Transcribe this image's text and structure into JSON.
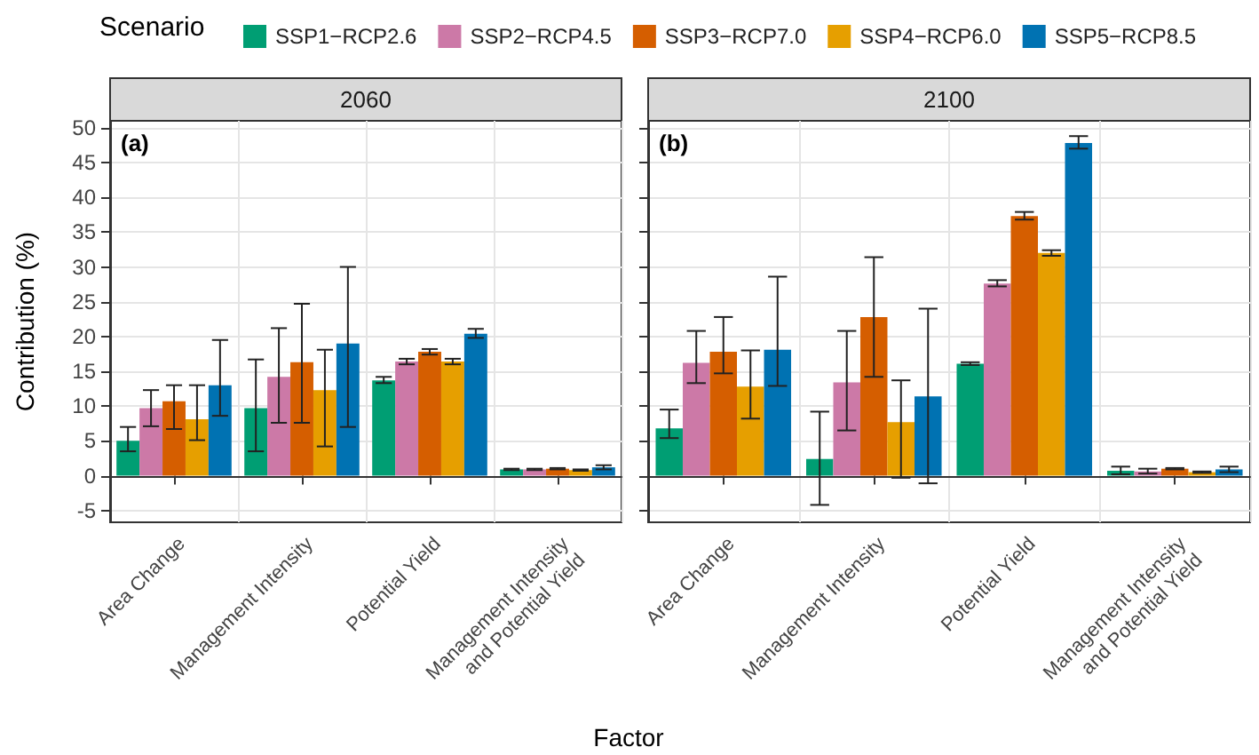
{
  "chart_data": [
    {
      "type": "bar",
      "title": "2060",
      "annotations": [
        "(a)"
      ],
      "xlabel": "Factor",
      "ylabel": "Contribution (%)",
      "legend_title": "Scenario",
      "legend": "top",
      "grid": true,
      "ylim": [
        -6.7,
        51
      ],
      "yticks": [
        -5,
        0,
        5,
        10,
        15,
        20,
        25,
        30,
        35,
        40,
        45,
        50
      ],
      "categories": [
        "Area Change",
        "Management Intensity",
        "Potential Yield",
        "Management Intensity\nand Potential Yield"
      ],
      "series": [
        {
          "name": "SSP1−RCP2.6",
          "color": "#009e73",
          "values": [
            5.0,
            9.7,
            13.7,
            0.9
          ],
          "errors": [
            [
              3.5,
              7.0
            ],
            [
              3.5,
              16.7
            ],
            [
              13.3,
              14.2
            ],
            [
              0.8,
              1.0
            ]
          ]
        },
        {
          "name": "SSP2−RCP4.5",
          "color": "#cc79a7",
          "values": [
            9.7,
            14.2,
            16.4,
            0.9
          ],
          "errors": [
            [
              7.1,
              12.3
            ],
            [
              7.6,
              21.2
            ],
            [
              16.0,
              16.8
            ],
            [
              0.8,
              1.0
            ]
          ]
        },
        {
          "name": "SSP3−RCP7.0",
          "color": "#d55e00",
          "values": [
            10.7,
            16.3,
            17.8,
            1.0
          ],
          "errors": [
            [
              6.7,
              13.0
            ],
            [
              7.6,
              24.7
            ],
            [
              17.4,
              18.2
            ],
            [
              0.9,
              1.1
            ]
          ]
        },
        {
          "name": "SSP4−RCP6.0",
          "color": "#e69f00",
          "values": [
            8.1,
            12.3,
            16.4,
            0.8
          ],
          "errors": [
            [
              5.1,
              13.0
            ],
            [
              4.2,
              18.1
            ],
            [
              16.0,
              16.8
            ],
            [
              0.7,
              0.9
            ]
          ]
        },
        {
          "name": "SSP5−RCP8.5",
          "color": "#0072b2",
          "values": [
            13.0,
            19.0,
            20.4,
            1.2
          ],
          "errors": [
            [
              8.6,
              19.5
            ],
            [
              7.0,
              30.0
            ],
            [
              19.8,
              21.1
            ],
            [
              0.9,
              1.5
            ]
          ]
        }
      ]
    },
    {
      "type": "bar",
      "title": "2100",
      "annotations": [
        "(b)"
      ],
      "legend": false,
      "grid": true,
      "tick_labels": "x",
      "ylim": [
        -6.7,
        51
      ],
      "yticks": [
        -5,
        0,
        5,
        10,
        15,
        20,
        25,
        30,
        35,
        40,
        45,
        50
      ],
      "categories": [
        "Area Change",
        "Management Intensity",
        "Potential Yield",
        "Management Intensity\nand Potential Yield"
      ],
      "series": [
        {
          "color": "#009e73",
          "values": [
            6.8,
            2.4,
            16.1,
            0.7
          ],
          "errors": [
            [
              5.4,
              9.5
            ],
            [
              -4.2,
              9.2
            ],
            [
              15.9,
              16.3
            ],
            [
              0.2,
              1.3
            ]
          ]
        },
        {
          "color": "#cc79a7",
          "values": [
            16.2,
            13.4,
            27.6,
            0.6
          ],
          "errors": [
            [
              13.3,
              20.8
            ],
            [
              6.5,
              20.8
            ],
            [
              27.2,
              28.1
            ],
            [
              0.3,
              1.0
            ]
          ]
        },
        {
          "color": "#d55e00",
          "values": [
            17.8,
            22.8,
            37.3,
            1.0
          ],
          "errors": [
            [
              14.7,
              22.8
            ],
            [
              14.2,
              31.4
            ],
            [
              36.8,
              37.9
            ],
            [
              0.9,
              1.1
            ]
          ]
        },
        {
          "color": "#e69f00",
          "values": [
            12.8,
            7.7,
            32.0,
            0.5
          ],
          "errors": [
            [
              8.2,
              18.0
            ],
            [
              -0.3,
              13.7
            ],
            [
              31.6,
              32.4
            ],
            [
              0.4,
              0.6
            ]
          ]
        },
        {
          "color": "#0072b2",
          "values": [
            18.1,
            11.4,
            47.8,
            0.9
          ],
          "errors": [
            [
              12.9,
              28.6
            ],
            [
              -1.1,
              24.0
            ],
            [
              47.0,
              48.8
            ],
            [
              0.5,
              1.3
            ]
          ]
        }
      ]
    }
  ]
}
